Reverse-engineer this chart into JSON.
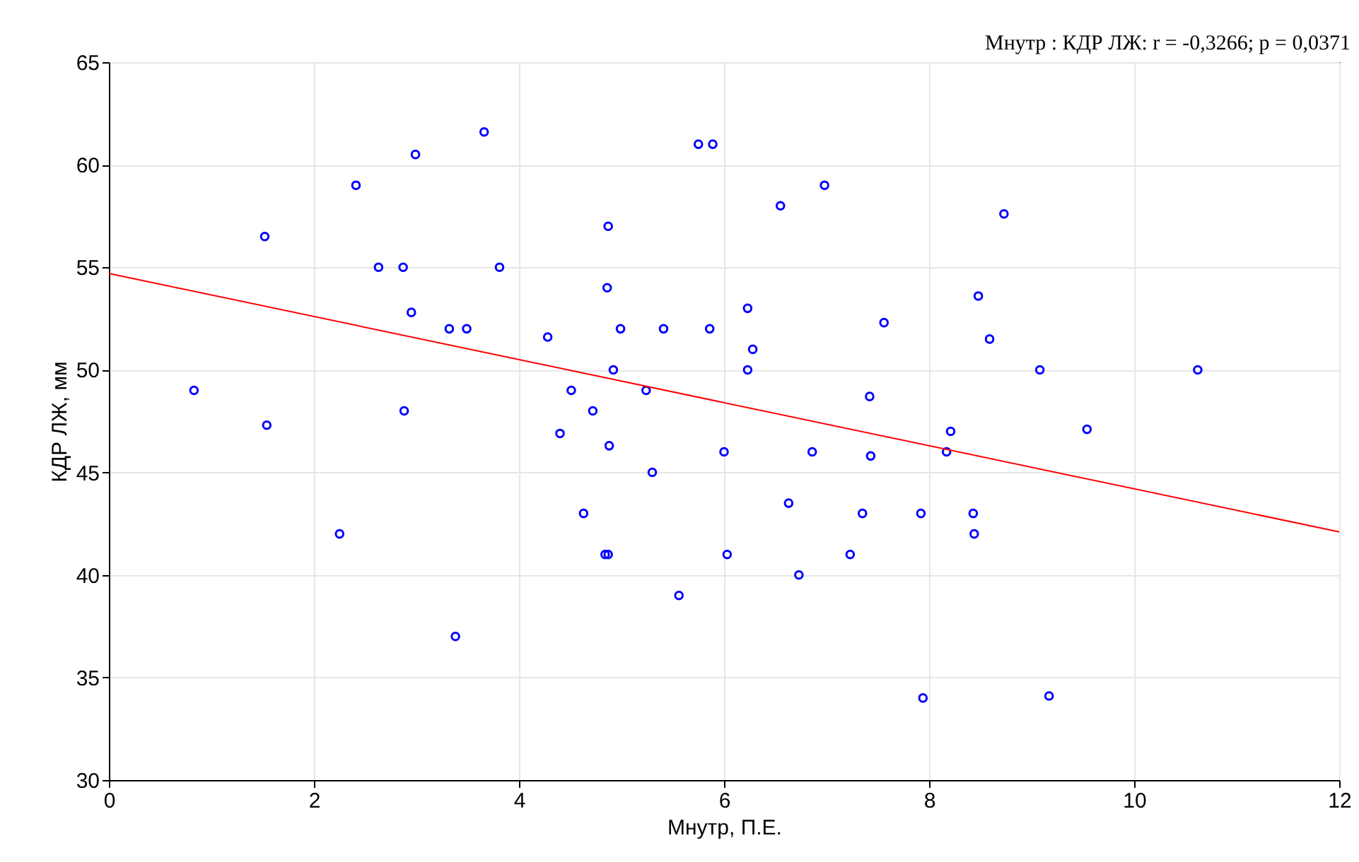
{
  "chart_data": {
    "type": "scatter",
    "xlabel": "Мнутр, П.Е.",
    "ylabel": "КДР ЛЖ, мм",
    "annotations": [
      "Мнутр : КДР ЛЖ:   r = -0,3266; p = 0,0371"
    ],
    "xlim": [
      0,
      12
    ],
    "ylim": [
      30,
      65
    ],
    "xticks": [
      0,
      2,
      4,
      6,
      8,
      10,
      12
    ],
    "yticks": [
      30,
      35,
      40,
      45,
      50,
      55,
      60,
      65
    ],
    "grid": true,
    "series": [
      {
        "marker": "circle",
        "color": "#0000ff",
        "x": [
          0.83,
          1.52,
          1.54,
          2.25,
          2.41,
          2.63,
          2.87,
          2.88,
          2.95,
          2.99,
          3.32,
          3.49,
          3.38,
          3.66,
          3.81,
          4.28,
          4.4,
          4.51,
          4.63,
          4.72,
          4.84,
          4.87,
          4.86,
          4.87,
          4.88,
          4.92,
          4.99,
          5.24,
          5.3,
          5.41,
          5.56,
          5.75,
          5.89,
          5.86,
          6.0,
          6.03,
          6.23,
          6.23,
          6.28,
          6.55,
          6.63,
          6.73,
          6.86,
          6.98,
          7.23,
          7.35,
          7.42,
          7.43,
          7.56,
          7.92,
          7.94,
          8.17,
          8.21,
          8.43,
          8.44,
          8.48,
          8.59,
          8.73,
          9.08,
          9.17,
          9.54,
          10.62
        ],
        "values": [
          49,
          56.5,
          47.3,
          42,
          59,
          55,
          55,
          48,
          52.8,
          60.5,
          52,
          52,
          37,
          61.6,
          55,
          51.6,
          46.9,
          49,
          43,
          48,
          41,
          41,
          54,
          57,
          46.3,
          50,
          52,
          49,
          45,
          52,
          39,
          61,
          61,
          52,
          46,
          41,
          53,
          50,
          51,
          58,
          43.5,
          40,
          46,
          59,
          41,
          43,
          48.7,
          45.8,
          52.3,
          43,
          34,
          46,
          47,
          43,
          42,
          53.6,
          51.5,
          57.6,
          50,
          34.1,
          47.1,
          50
        ]
      },
      {
        "type": "line",
        "color": "#ff0000",
        "x": [
          0,
          12
        ],
        "values": [
          54.7,
          42.1
        ]
      }
    ]
  }
}
